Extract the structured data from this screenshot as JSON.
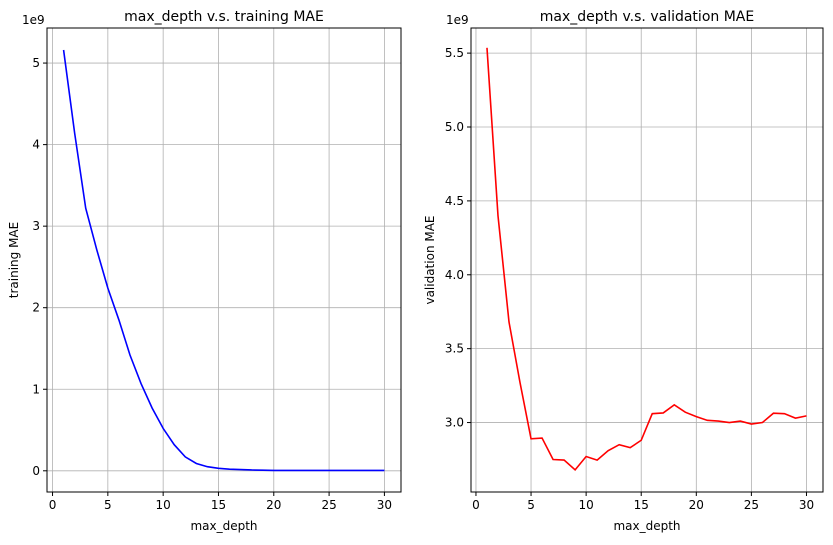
{
  "chart_data": [
    {
      "type": "line",
      "title": "max_depth v.s. training MAE",
      "xlabel": "max_depth",
      "ylabel": "training MAE",
      "offset_label": "1e9",
      "xlim": [
        -0.5,
        31.5
      ],
      "ylim": [
        -0.26,
        5.43
      ],
      "grid": true,
      "color": "#0000ff",
      "xticks": [
        0,
        5,
        10,
        15,
        20,
        25,
        30
      ],
      "yticks": [
        0,
        1,
        2,
        3,
        4,
        5
      ],
      "ytick_labels": [
        "0",
        "1",
        "2",
        "3",
        "4",
        "5"
      ],
      "x": [
        1,
        2,
        3,
        4,
        5,
        6,
        7,
        8,
        9,
        10,
        11,
        12,
        13,
        14,
        15,
        16,
        17,
        18,
        19,
        20,
        21,
        22,
        23,
        24,
        25,
        26,
        27,
        28,
        29,
        30
      ],
      "y": [
        5.16,
        4.14,
        3.22,
        2.71,
        2.24,
        1.85,
        1.42,
        1.07,
        0.77,
        0.52,
        0.32,
        0.17,
        0.09,
        0.05,
        0.03,
        0.02,
        0.015,
        0.01,
        0.008,
        0.005,
        0.005,
        0.005,
        0.005,
        0.005,
        0.005,
        0.005,
        0.005,
        0.005,
        0.005,
        0.005
      ]
    },
    {
      "type": "line",
      "title": "max_depth v.s. validation MAE",
      "xlabel": "max_depth",
      "ylabel": "validation MAE",
      "offset_label": "1e9",
      "xlim": [
        -0.45,
        31.5
      ],
      "ylim": [
        2.53,
        5.67
      ],
      "grid": true,
      "color": "#ff0000",
      "xticks": [
        0,
        5,
        10,
        15,
        20,
        25,
        30
      ],
      "yticks": [
        3.0,
        3.5,
        4.0,
        4.5,
        5.0,
        5.5
      ],
      "ytick_labels": [
        "3.0",
        "3.5",
        "4.0",
        "4.5",
        "5.0",
        "5.5"
      ],
      "x": [
        1,
        2,
        3,
        4,
        5,
        6,
        7,
        8,
        9,
        10,
        11,
        12,
        13,
        14,
        15,
        16,
        17,
        18,
        19,
        20,
        21,
        22,
        23,
        24,
        25,
        26,
        27,
        28,
        29,
        30
      ],
      "y": [
        5.536,
        4.4,
        3.68,
        3.27,
        2.89,
        2.895,
        2.75,
        2.746,
        2.68,
        2.77,
        2.746,
        2.81,
        2.85,
        2.83,
        2.88,
        3.06,
        3.065,
        3.12,
        3.07,
        3.04,
        3.015,
        3.01,
        3.0,
        3.01,
        2.99,
        3.0,
        3.063,
        3.06,
        3.03,
        3.045
      ]
    }
  ]
}
